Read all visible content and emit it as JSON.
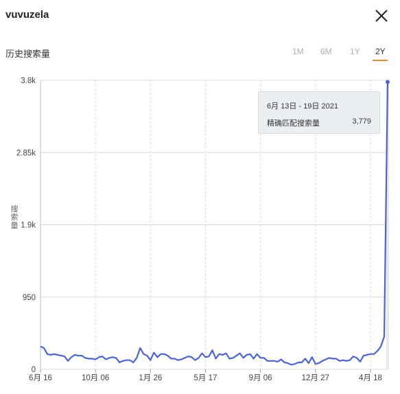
{
  "header": {
    "title": "vuvuzela",
    "subtitle": "历史搜索量"
  },
  "range_tabs": [
    {
      "label": "1M",
      "active": false
    },
    {
      "label": "6M",
      "active": false
    },
    {
      "label": "1Y",
      "active": false
    },
    {
      "label": "2Y",
      "active": true
    }
  ],
  "colors": {
    "line": "#4a62e0",
    "accent": "#f08a24",
    "grid": "#d9d9d9"
  },
  "tooltip": {
    "date": "6月 13日 - 19日 2021",
    "label": "精确匹配搜索量",
    "value": "3,779"
  },
  "chart_data": {
    "type": "line",
    "ylabel": "搜索量",
    "y_ticks": [
      {
        "value": 0,
        "label": "0"
      },
      {
        "value": 950,
        "label": "950"
      },
      {
        "value": 1900,
        "label": "1.9k"
      },
      {
        "value": 2850,
        "label": "2.85k"
      },
      {
        "value": 3800,
        "label": "3.8k"
      }
    ],
    "ylim": [
      0,
      3800
    ],
    "x_ticks": [
      {
        "week": 0,
        "label": "6月 16"
      },
      {
        "week": 16,
        "label": "10月 06"
      },
      {
        "week": 32,
        "label": "1月 26"
      },
      {
        "week": 48,
        "label": "5月 17"
      },
      {
        "week": 64,
        "label": "9月 06"
      },
      {
        "week": 80,
        "label": "12月 27"
      },
      {
        "week": 96,
        "label": "4月 18"
      }
    ],
    "grid": true,
    "series": [
      {
        "values": [
          300,
          280,
          200,
          190,
          200,
          190,
          180,
          170,
          110,
          160,
          190,
          180,
          180,
          150,
          140,
          140,
          130,
          160,
          170,
          130,
          150,
          160,
          150,
          90,
          110,
          120,
          120,
          90,
          150,
          280,
          200,
          180,
          120,
          220,
          160,
          200,
          200,
          180,
          140,
          140,
          120,
          130,
          150,
          170,
          160,
          120,
          150,
          210,
          160,
          170,
          250,
          140,
          200,
          190,
          210,
          140,
          150,
          180,
          210,
          150,
          190,
          200,
          140,
          200,
          150,
          150,
          110,
          110,
          110,
          100,
          130,
          90,
          80,
          60,
          70,
          90,
          90,
          140,
          80,
          160,
          70,
          80,
          110,
          130,
          150,
          140,
          140,
          110,
          120,
          110,
          120,
          170,
          150,
          100,
          180,
          190,
          200,
          200,
          240,
          300,
          430,
          3779
        ]
      }
    ]
  }
}
